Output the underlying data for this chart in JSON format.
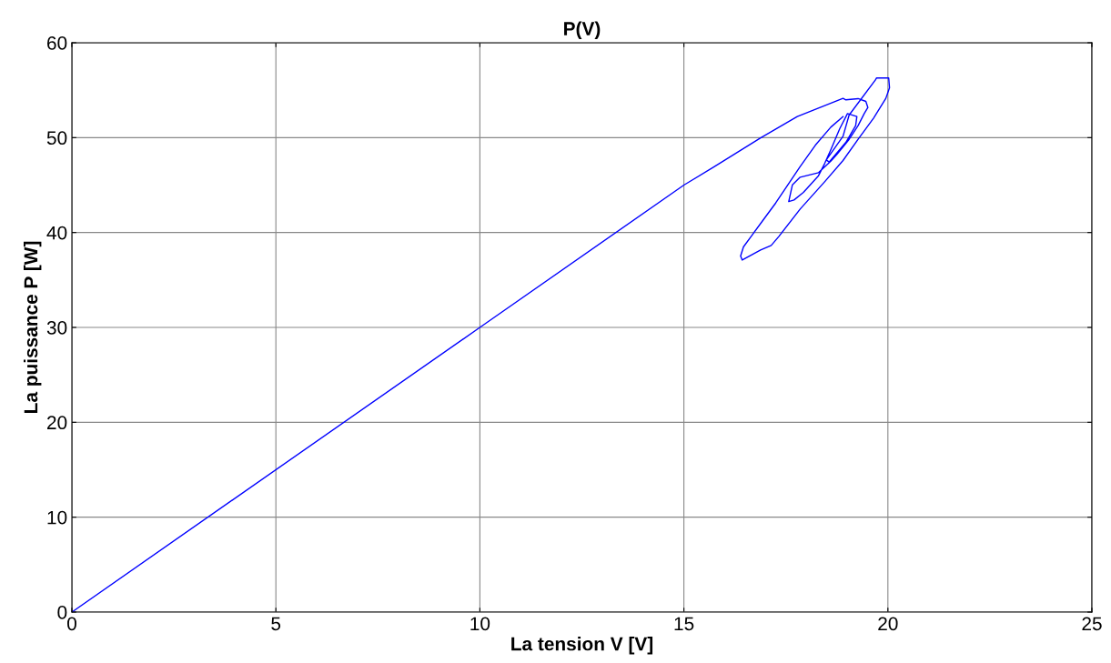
{
  "chart_data": {
    "type": "line",
    "title": "P(V)",
    "xlabel": "La tension V [V]",
    "ylabel": "La puissance P [W]",
    "x": [
      0,
      10,
      15,
      15.75,
      16.88,
      17.78,
      18.9,
      18.97,
      19.27,
      19.46,
      19.51,
      19.42,
      19.27,
      19.05,
      18.75,
      18.6,
      18.3,
      17.85,
      17.66,
      17.57,
      17.7,
      17.93,
      18.3,
      18.45,
      18.6,
      18.82,
      19.01,
      19.24,
      19.21,
      18.97,
      18.56,
      18.49,
      18.64,
      18.9,
      19.05,
      19.69,
      19.72,
      20.02,
      20.04,
      19.95,
      19.65,
      19.27,
      18.9,
      18.45,
      17.85,
      17.33,
      17.14,
      16.88,
      16.43,
      16.39,
      16.46,
      16.65,
      16.95,
      17.25,
      17.55,
      17.85,
      18.22,
      18.6,
      18.9
    ],
    "series": [
      {
        "color": "#0000ff",
        "values": [
          0,
          30,
          45,
          46.95,
          49.98,
          52.22,
          54.14,
          53.98,
          54.11,
          53.82,
          53.18,
          52.54,
          51.26,
          49.82,
          48.23,
          47.52,
          46.31,
          45.83,
          45.03,
          43.27,
          43.43,
          44.23,
          45.99,
          47.27,
          48.71,
          50.94,
          52.54,
          52.22,
          51.26,
          49.5,
          47.43,
          47.65,
          48.55,
          50.14,
          52.38,
          56.06,
          56.28,
          56.28,
          55.26,
          54.14,
          52.06,
          49.82,
          47.59,
          45.35,
          42.47,
          39.6,
          38.64,
          38.16,
          37.1,
          37.52,
          38.48,
          39.6,
          41.36,
          43.11,
          45.03,
          46.95,
          49.19,
          51.1,
          52.22
        ]
      }
    ],
    "xlim": [
      0,
      25
    ],
    "xticks": [
      0,
      5,
      10,
      15,
      20,
      25
    ],
    "ylim": [
      0,
      60
    ],
    "yticks": [
      0,
      10,
      20,
      30,
      40,
      50,
      60
    ],
    "grid": true,
    "marker": "none",
    "line_style": "solid"
  }
}
